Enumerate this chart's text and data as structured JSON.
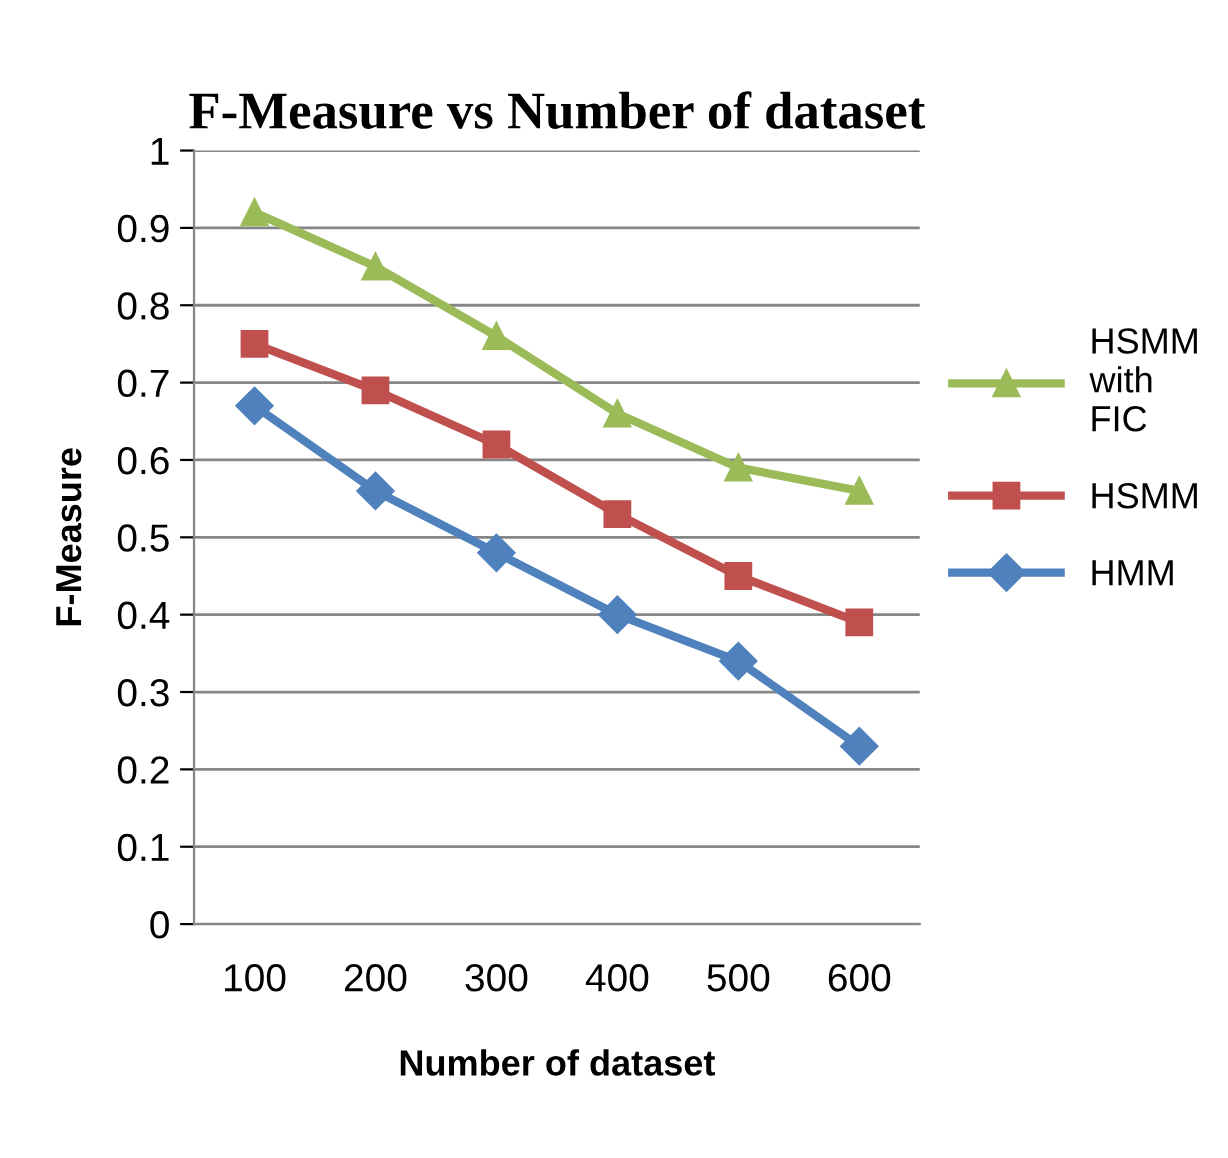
{
  "chart_data": {
    "type": "line",
    "title": "F-Measure vs Number of dataset",
    "xlabel": "Number of dataset",
    "ylabel": "F-Measure",
    "categories": [
      "100",
      "200",
      "300",
      "400",
      "500",
      "600"
    ],
    "series": [
      {
        "name": "HSMM with FIC",
        "color": "#9bbb59",
        "marker": "triangle",
        "values": [
          0.92,
          0.85,
          0.76,
          0.66,
          0.59,
          0.56
        ]
      },
      {
        "name": "HSMM",
        "color": "#c0504d",
        "marker": "square",
        "values": [
          0.75,
          0.69,
          0.62,
          0.53,
          0.45,
          0.39
        ]
      },
      {
        "name": "HMM",
        "color": "#4f81bd",
        "marker": "diamond",
        "values": [
          0.67,
          0.56,
          0.48,
          0.4,
          0.34,
          0.23
        ]
      }
    ],
    "ylim": [
      0,
      1
    ],
    "yticks": [
      0,
      0.1,
      0.2,
      0.3,
      0.4,
      0.5,
      0.6,
      0.7,
      0.8,
      0.9,
      1
    ],
    "grid": "y",
    "legend": "right",
    "line_style": "solid"
  }
}
